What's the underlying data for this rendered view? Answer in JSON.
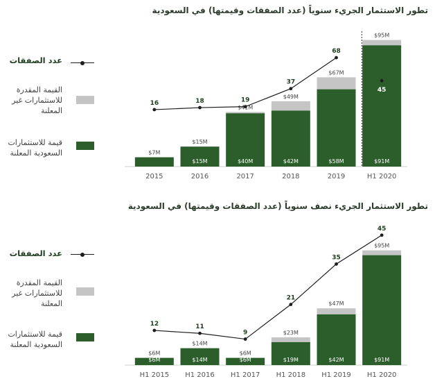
{
  "colors": {
    "disclosed": "#2b5e2b",
    "undisclosed": "#c5c5c5",
    "line": "#1d1d1d",
    "axis": "#cfcfcf"
  },
  "legend": {
    "deals_label": "عدد الصفقات",
    "undisclosed_label": "القيمة المقدرة للاستثمارات غير المعلنة",
    "disclosed_label": "قيمة للاستثمارات السعودية المعلنة"
  },
  "chart_data": [
    {
      "type": "bar",
      "title": "تطور الاستثمار الجريء سنوياً (عدد الصفقات وقيمتها) في السعودية",
      "categories": [
        "2015",
        "2016",
        "2017",
        "2018",
        "2019",
        "H1 2020"
      ],
      "series": [
        {
          "name": "قيمة للاستثمارات السعودية المعلنة",
          "values": [
            7,
            15,
            40,
            42,
            58,
            91
          ],
          "labels": [
            "",
            "$15M",
            "$40M",
            "$42M",
            "$58M",
            "$91M"
          ]
        },
        {
          "name": "القيمة المقدرة للاستثمارات غير المعلنة",
          "values": [
            0,
            0,
            1,
            7,
            9,
            4
          ]
        },
        {
          "name": "عدد الصفقات",
          "values": [
            16,
            18,
            19,
            37,
            68,
            45
          ]
        }
      ],
      "totals": [
        "$7M",
        "$15M",
        "$41M",
        "$49M",
        "$67M",
        "$95M"
      ],
      "ylim": [
        0,
        100
      ],
      "deals_ylim": [
        0,
        75
      ],
      "divider_before": "H1 2020"
    },
    {
      "type": "bar",
      "title": "تطور الاستثمار الجريء نصف سنوياً (عدد الصفقات وقيمتها) في السعودية",
      "categories": [
        "H1 2015",
        "H1 2016",
        "H1 2017",
        "H1 2018",
        "H1 2019",
        "H1 2020"
      ],
      "series": [
        {
          "name": "قيمة للاستثمارات السعودية المعلنة",
          "values": [
            6,
            14,
            6,
            19,
            42,
            91
          ],
          "labels": [
            "$6M",
            "$14M",
            "$6M",
            "$19M",
            "$42M",
            "$91M"
          ]
        },
        {
          "name": "القيمة المقدرة للاستثمارات غير المعلنة",
          "values": [
            0,
            0,
            0,
            4,
            5,
            4
          ]
        },
        {
          "name": "عدد الصفقات",
          "values": [
            12,
            11,
            9,
            21,
            35,
            45
          ]
        }
      ],
      "totals": [
        "$6M",
        "$14M",
        "$6M",
        "$23M",
        "$47M",
        "$95M"
      ],
      "ylim": [
        0,
        100
      ],
      "deals_ylim": [
        0,
        50
      ]
    }
  ]
}
